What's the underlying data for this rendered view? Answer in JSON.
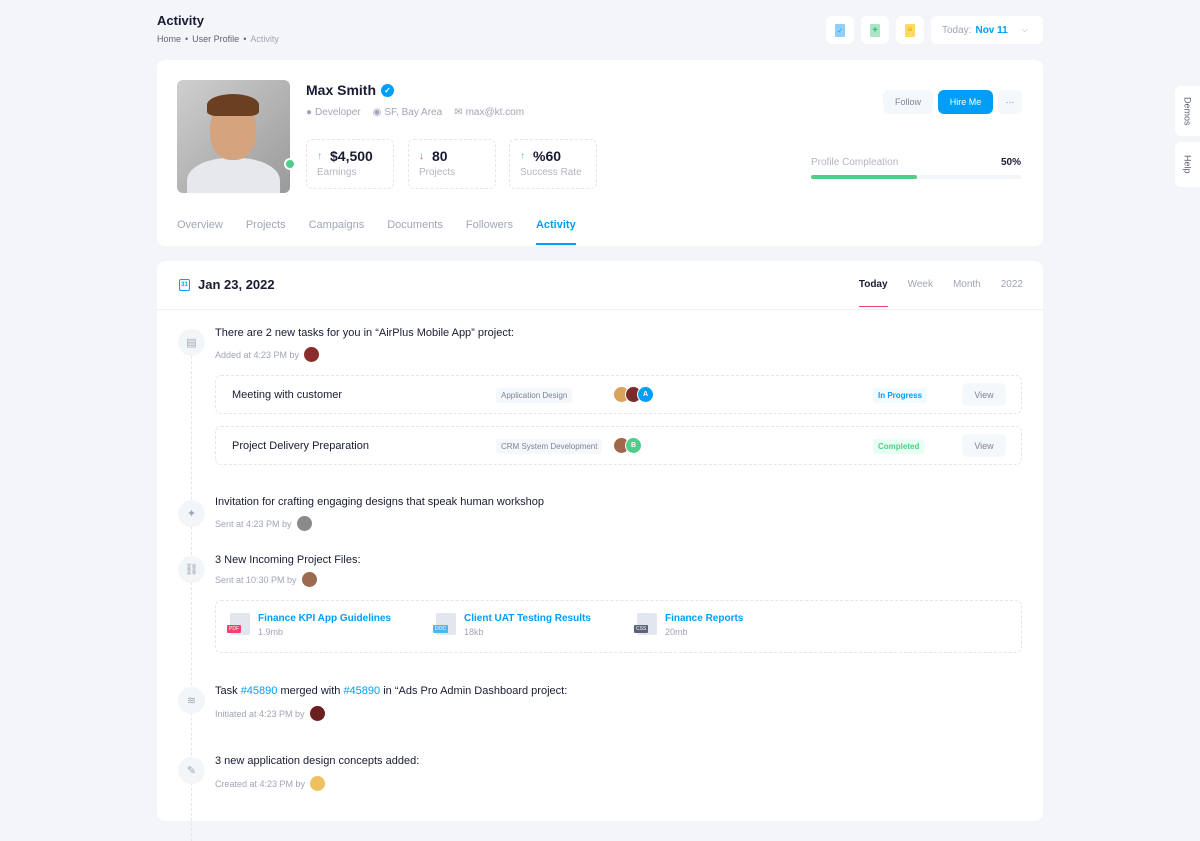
{
  "header": {
    "title": "Activity",
    "breadcrumbs": [
      "Home",
      "User Profile",
      "Activity"
    ],
    "date_label": "Today:",
    "date_value": "Nov 11"
  },
  "toolbar": {
    "icons": [
      "file-check-icon",
      "file-add-icon",
      "file-text-icon"
    ]
  },
  "side_tabs": [
    "Demos",
    "Help"
  ],
  "profile": {
    "name": "Max Smith",
    "role": "Developer",
    "location": "SF, Bay Area",
    "email": "max@kt.com",
    "stats": [
      {
        "value": "$4,500",
        "label": "Earnings",
        "trend": "up"
      },
      {
        "value": "80",
        "label": "Projects",
        "trend": "down"
      },
      {
        "value": "%60",
        "label": "Success Rate",
        "trend": "up"
      }
    ],
    "follow_label": "Follow",
    "hire_label": "Hire Me",
    "more_label": "···",
    "completion_label": "Profile Compleation",
    "completion_value": "50%",
    "completion_percent": 50,
    "tabs": [
      "Overview",
      "Projects",
      "Campaigns",
      "Documents",
      "Followers",
      "Activity"
    ],
    "active_tab": "Activity"
  },
  "activity": {
    "date": "Jan 23, 2022",
    "periods": [
      "Today",
      "Week",
      "Month",
      "2022"
    ],
    "active_period": "Today",
    "items": [
      {
        "text": "There are 2 new tasks for you in “AirPlus Mobile App” project:",
        "sub": "Added at 4:23 PM by",
        "icon": "message-icon"
      },
      {
        "text": "Invitation for crafting engaging designs that speak human workshop",
        "sub": "Sent at 4:23 PM by",
        "icon": "pin-icon"
      },
      {
        "text": "3 New Incoming Project Files:",
        "sub": "Sent at 10:30 PM by",
        "icon": "link-icon"
      },
      {
        "text_parts": [
          "Task ",
          "#45890",
          " merged with ",
          "#45890",
          " in “Ads Pro Admin Dashboard project:"
        ],
        "sub": "Initiated at 4:23 PM by",
        "icon": "layers-icon"
      },
      {
        "text": "3 new application design concepts added:",
        "sub": "Created at 4:23 PM by",
        "icon": "pencil-icon"
      }
    ],
    "tasks": [
      {
        "name": "Meeting with customer",
        "tag": "Application Design",
        "status": "In Progress",
        "status_color": "#009ef7",
        "status_bg": "#f1faff",
        "avatar_letter": "A",
        "view": "View"
      },
      {
        "name": "Project Delivery Preparation",
        "tag": "CRM System Development",
        "status": "Completed",
        "status_color": "#50cd89",
        "status_bg": "#e8fff3",
        "avatar_letter": "B",
        "view": "View"
      }
    ],
    "files": [
      {
        "name": "Finance KPI App Guidelines",
        "size": "1.9mb",
        "type": "PDF",
        "color": "#f1416c"
      },
      {
        "name": "Client UAT Testing Results",
        "size": "18kb",
        "type": "DOC",
        "color": "#50b5f1"
      },
      {
        "name": "Finance Reports",
        "size": "20mb",
        "type": "CSS",
        "color": "#5e6278"
      }
    ]
  },
  "colors": {
    "primary": "#009ef7",
    "success": "#50cd89",
    "danger": "#f1416c"
  }
}
